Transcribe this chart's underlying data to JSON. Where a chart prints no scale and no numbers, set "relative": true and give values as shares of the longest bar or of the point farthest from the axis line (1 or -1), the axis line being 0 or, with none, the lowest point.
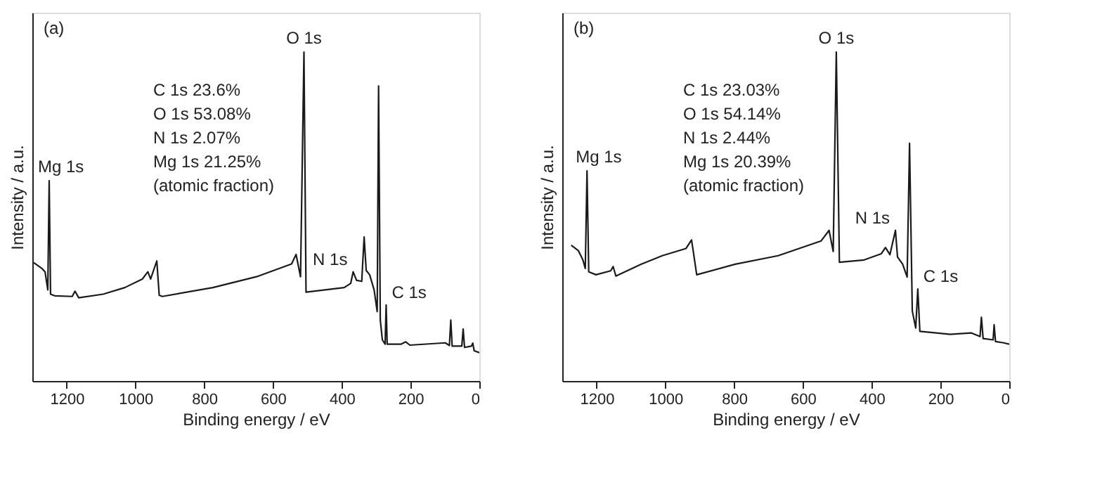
{
  "chart_data": [
    {
      "type": "line",
      "relative": true,
      "xlabel": "Binding energy / eV",
      "ylabel": "Intensity / a.u.",
      "xlim": [
        1300,
        0
      ],
      "xticks": [
        1200,
        1000,
        800,
        600,
        400,
        200,
        0
      ],
      "tick_labels": "x",
      "grid": false,
      "marker": "none",
      "line_style": "solid",
      "x": [
        1296,
        1273,
        1263,
        1255,
        1251,
        1247,
        1235,
        1184,
        1176,
        1165,
        1094,
        1031,
        980,
        964,
        956,
        938,
        931,
        922,
        775,
        648,
        546,
        533,
        520,
        510,
        504,
        393,
        374,
        367,
        357,
        342,
        335,
        329,
        319,
        306,
        297,
        293,
        288,
        282,
        274,
        271,
        268,
        227,
        214,
        202,
        99,
        87,
        83,
        79,
        51,
        47,
        43,
        23,
        19,
        15,
        0
      ],
      "series": [
        {
          "color": "#1a1a1a",
          "values": [
            0.36,
            0.343,
            0.332,
            0.277,
            0.609,
            0.264,
            0.259,
            0.257,
            0.273,
            0.253,
            0.264,
            0.284,
            0.31,
            0.332,
            0.31,
            0.365,
            0.261,
            0.257,
            0.284,
            0.317,
            0.356,
            0.385,
            0.317,
            1.0,
            0.27,
            0.284,
            0.297,
            0.332,
            0.306,
            0.303,
            0.438,
            0.336,
            0.323,
            0.277,
            0.211,
            0.897,
            0.185,
            0.125,
            0.112,
            0.231,
            0.112,
            0.112,
            0.119,
            0.109,
            0.116,
            0.108,
            0.185,
            0.106,
            0.106,
            0.158,
            0.102,
            0.106,
            0.115,
            0.092,
            0.086
          ]
        }
      ],
      "annotations": [
        "(a)",
        "C 1s 23.6%",
        "O 1s 53.08%",
        "N 1s 2.07%",
        "Mg 1s 21.25%",
        "(atomic fraction)",
        {
          "text": "Mg 1s",
          "x": 1251,
          "y": 0.609
        },
        {
          "text": "O 1s",
          "x": 510,
          "y": 1.0
        },
        {
          "text": "N 1s",
          "x": 367,
          "y": 0.332
        },
        {
          "text": "C 1s",
          "x": 271,
          "y": 0.231
        }
      ]
    },
    {
      "type": "line",
      "relative": true,
      "xlabel": "Binding energy / eV",
      "ylabel": "Intensity / a.u.",
      "xlim": [
        1300,
        0
      ],
      "xticks": [
        1200,
        1000,
        800,
        600,
        400,
        200,
        0
      ],
      "tick_labels": "x",
      "grid": false,
      "marker": "none",
      "line_style": "solid",
      "x": [
        1274,
        1253,
        1240,
        1233,
        1228,
        1223,
        1202,
        1159,
        1152,
        1144,
        1071,
        1009,
        940,
        924,
        918,
        909,
        797,
        672,
        547,
        524,
        512,
        503,
        494,
        422,
        372,
        360,
        347,
        331,
        325,
        310,
        297,
        290,
        282,
        272,
        266,
        260,
        172,
        110,
        85,
        81,
        76,
        47,
        44,
        40,
        16,
        0
      ],
      "series": [
        {
          "color": "#1a1a1a",
          "values": [
            0.413,
            0.396,
            0.368,
            0.342,
            0.639,
            0.332,
            0.323,
            0.335,
            0.348,
            0.319,
            0.355,
            0.381,
            0.403,
            0.429,
            0.387,
            0.323,
            0.355,
            0.381,
            0.426,
            0.458,
            0.394,
            1.0,
            0.361,
            0.368,
            0.387,
            0.406,
            0.384,
            0.458,
            0.377,
            0.355,
            0.316,
            0.723,
            0.213,
            0.161,
            0.28,
            0.151,
            0.142,
            0.146,
            0.135,
            0.194,
            0.129,
            0.125,
            0.171,
            0.12,
            0.116,
            0.112
          ]
        }
      ],
      "annotations": [
        "(b)",
        "C 1s 23.03%",
        "O 1s 54.14%",
        "N 1s 2.44%",
        "Mg 1s 20.39%",
        "(atomic fraction)",
        {
          "text": "Mg 1s",
          "x": 1228,
          "y": 0.639
        },
        {
          "text": "O 1s",
          "x": 503,
          "y": 1.0
        },
        {
          "text": "N 1s",
          "x": 331,
          "y": 0.458
        },
        {
          "text": "C 1s",
          "x": 266,
          "y": 0.28
        }
      ]
    }
  ]
}
